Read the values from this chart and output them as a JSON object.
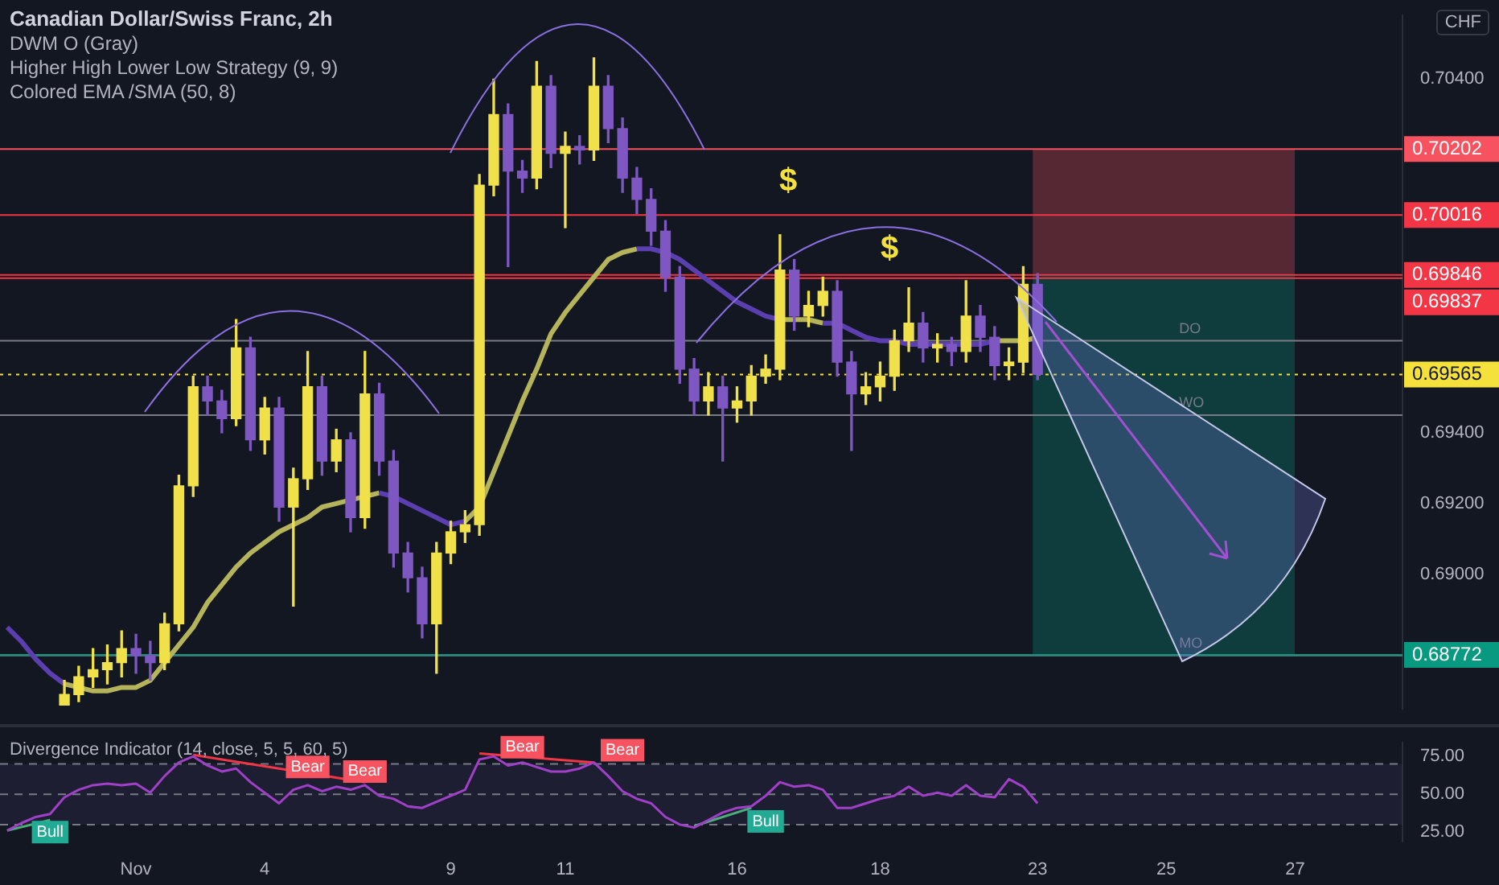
{
  "chart_data": [
    {
      "type": "candlestick",
      "title": "Canadian Dollar/Swiss Franc, 2h",
      "ylabel": "CHF",
      "annotations": [
        "DWM O (Gray)",
        "Higher High Lower Low Strategy (9, 9)",
        "Colored EMA /SMA (50, 8)",
        "$",
        "$"
      ],
      "categories": [
        null,
        null,
        null,
        null,
        null,
        null,
        null,
        null,
        null,
        null,
        null,
        null,
        null,
        null,
        null,
        null,
        null,
        null,
        null,
        null,
        null,
        null,
        null,
        null,
        null,
        null,
        null,
        null,
        null,
        null,
        null,
        null,
        null,
        null,
        null,
        null,
        null,
        null,
        null,
        null,
        null,
        null,
        null,
        null,
        null,
        null,
        null,
        null,
        null,
        null,
        null,
        null,
        null,
        null,
        null,
        null,
        null,
        null,
        null,
        null,
        null,
        null,
        null,
        null,
        null,
        null,
        null,
        null,
        null,
        null,
        null,
        null,
        null,
        null,
        null,
        null,
        null,
        null,
        null,
        null,
        null,
        null,
        null,
        null,
        null,
        null,
        null,
        null,
        null,
        null,
        null,
        null,
        null,
        null,
        null,
        null,
        null,
        null
      ],
      "ohlc": [
        null,
        null,
        null,
        null,
        [
          0.6863,
          0.687,
          0.6863,
          0.6866
        ],
        [
          0.6866,
          0.6874,
          0.6864,
          0.6871
        ],
        [
          0.6871,
          0.6879,
          0.6868,
          0.6873
        ],
        [
          0.6873,
          0.688,
          0.6869,
          0.6875
        ],
        [
          0.6875,
          0.6884,
          0.6871,
          0.6879
        ],
        [
          0.6879,
          0.6883,
          0.6872,
          0.6877
        ],
        [
          0.6877,
          0.6881,
          0.687,
          0.6875
        ],
        [
          0.6875,
          0.6889,
          0.6873,
          0.6886
        ],
        [
          0.6886,
          0.6928,
          0.6884,
          0.6925
        ],
        [
          0.6925,
          0.6956,
          0.6922,
          0.6953
        ],
        [
          0.6953,
          0.6956,
          0.6945,
          0.6949
        ],
        [
          0.6949,
          0.6952,
          0.694,
          0.6944
        ],
        [
          0.6944,
          0.6972,
          0.6942,
          0.6964
        ],
        [
          0.6964,
          0.6967,
          0.6935,
          0.6938
        ],
        [
          0.6938,
          0.695,
          0.6934,
          0.6947
        ],
        [
          0.6947,
          0.695,
          0.6915,
          0.6919
        ],
        [
          0.6919,
          0.693,
          0.6891,
          0.6927
        ],
        [
          0.6927,
          0.6963,
          0.6924,
          0.6953
        ],
        [
          0.6953,
          0.6956,
          0.6928,
          0.6932
        ],
        [
          0.6932,
          0.6941,
          0.6929,
          0.6938
        ],
        [
          0.6938,
          0.694,
          0.6912,
          0.6916
        ],
        [
          0.6916,
          0.6963,
          0.6913,
          0.6951
        ],
        [
          0.6951,
          0.6954,
          0.6928,
          0.6932
        ],
        [
          0.6932,
          0.6935,
          0.6902,
          0.6906
        ],
        [
          0.6906,
          0.6909,
          0.6895,
          0.6899
        ],
        [
          0.6899,
          0.6902,
          0.6882,
          0.6886
        ],
        [
          0.6886,
          0.6909,
          0.6872,
          0.6906
        ],
        [
          0.6906,
          0.6915,
          0.6903,
          0.6912
        ],
        [
          0.6912,
          0.6918,
          0.6909,
          0.6914
        ],
        [
          0.6914,
          0.7013,
          0.6911,
          0.701
        ],
        [
          0.701,
          0.704,
          0.7007,
          0.703
        ],
        [
          0.703,
          0.7033,
          0.6987,
          0.7014
        ],
        [
          0.7014,
          0.7017,
          0.7008,
          0.7012
        ],
        [
          0.7012,
          0.7045,
          0.7009,
          0.7038
        ],
        [
          0.7038,
          0.7041,
          0.7015,
          0.7019
        ],
        [
          0.7019,
          0.7025,
          0.6998,
          0.7021
        ],
        [
          0.7021,
          0.7024,
          0.7016,
          0.702
        ],
        [
          0.702,
          0.7046,
          0.7017,
          0.7038
        ],
        [
          0.7038,
          0.7041,
          0.7022,
          0.7026
        ],
        [
          0.7026,
          0.7029,
          0.7008,
          0.7012
        ],
        [
          0.7012,
          0.7015,
          0.7002,
          0.7006
        ],
        [
          0.7006,
          0.7009,
          0.6993,
          0.6997
        ],
        [
          0.6997,
          0.7,
          0.698,
          0.6984
        ],
        [
          0.6984,
          0.6987,
          0.6954,
          0.6958
        ],
        [
          0.6958,
          0.6961,
          0.6945,
          0.6949
        ],
        [
          0.6949,
          0.6957,
          0.6945,
          0.6953
        ],
        [
          0.6953,
          0.6956,
          0.6932,
          0.6947
        ],
        [
          0.6947,
          0.6953,
          0.6943,
          0.6949
        ],
        [
          0.6949,
          0.6959,
          0.6945,
          0.6956
        ],
        [
          0.6956,
          0.6962,
          0.6954,
          0.6958
        ],
        [
          0.6958,
          0.6996,
          0.6955,
          0.6986
        ],
        [
          0.6986,
          0.6989,
          0.6969,
          0.6973
        ],
        [
          0.6973,
          0.698,
          0.697,
          0.6976
        ],
        [
          0.6976,
          0.6984,
          0.6973,
          0.698
        ],
        [
          0.698,
          0.6983,
          0.6956,
          0.696
        ],
        [
          0.696,
          0.6963,
          0.6935,
          0.6951
        ],
        [
          0.6951,
          0.6957,
          0.6948,
          0.6953
        ],
        [
          0.6953,
          0.696,
          0.6949,
          0.6956
        ],
        [
          0.6956,
          0.6969,
          0.6952,
          0.6966
        ],
        [
          0.6966,
          0.6981,
          0.6963,
          0.6971
        ],
        [
          0.6971,
          0.6974,
          0.696,
          0.6964
        ],
        [
          0.6964,
          0.6968,
          0.696,
          0.6965
        ],
        [
          0.6965,
          0.6967,
          0.6959,
          0.6963
        ],
        [
          0.6963,
          0.6983,
          0.696,
          0.6973
        ],
        [
          0.6973,
          0.6976,
          0.6963,
          0.6967
        ],
        [
          0.6967,
          0.697,
          0.6955,
          0.6959
        ],
        [
          0.6959,
          0.6964,
          0.6955,
          0.696
        ],
        [
          0.696,
          0.6987,
          0.6957,
          0.6982
        ],
        [
          0.6982,
          0.6985,
          0.6955,
          0.69565
        ],
        null,
        null,
        null,
        null,
        null,
        null,
        null,
        null,
        null,
        null,
        null,
        null,
        null,
        null,
        null,
        null,
        null,
        null,
        null,
        null,
        null,
        null,
        null,
        null,
        null
      ],
      "colors": [
        null,
        null,
        null,
        null,
        "#f0e04a",
        "#f0e04a",
        "#f0e04a",
        "#f0e04a",
        "#f0e04a",
        "#7e57c2",
        "#7e57c2",
        "#f0e04a",
        "#f0e04a",
        "#f0e04a",
        "#7e57c2",
        "#7e57c2",
        "#f0e04a",
        "#7e57c2",
        "#f0e04a",
        "#7e57c2",
        "#f0e04a",
        "#f0e04a",
        "#7e57c2",
        "#f0e04a",
        "#7e57c2",
        "#f0e04a",
        "#7e57c2",
        "#7e57c2",
        "#7e57c2",
        "#7e57c2",
        "#f0e04a",
        "#f0e04a",
        "#f0e04a",
        "#f0e04a",
        "#f0e04a",
        "#7e57c2",
        "#7e57c2",
        "#f0e04a",
        "#7e57c2",
        "#f0e04a",
        "#7e57c2",
        "#f0e04a",
        "#7e57c2",
        "#7e57c2",
        "#7e57c2",
        "#7e57c2",
        "#7e57c2",
        "#7e57c2",
        "#7e57c2",
        "#f0e04a",
        "#7e57c2",
        "#f0e04a",
        "#f0e04a",
        "#f0e04a",
        "#f0e04a",
        "#7e57c2",
        "#f0e04a",
        "#f0e04a",
        "#7e57c2",
        "#7e57c2",
        "#f0e04a",
        "#f0e04a",
        "#f0e04a",
        "#f0e04a",
        "#7e57c2",
        "#f0e04a",
        "#7e57c2",
        "#f0e04a",
        "#7e57c2",
        "#7e57c2",
        "#f0e04a",
        "#f0e04a",
        "#7e57c2",
        null,
        null,
        null,
        null,
        null,
        null,
        null,
        null,
        null,
        null,
        null,
        null,
        null,
        null,
        null,
        null,
        null,
        null,
        null,
        null,
        null,
        null,
        null,
        null,
        null
      ],
      "series": [
        {
          "type": "line",
          "color": "#5b3fb0",
          "values": [
            0.6885,
            0.6881,
            0.6876,
            0.6872,
            0.6869,
            null,
            null,
            null,
            null,
            null,
            null,
            null,
            null,
            null,
            null,
            null,
            null,
            null,
            null,
            null,
            null,
            null,
            null,
            null,
            null,
            null,
            0.6923,
            0.6922,
            0.692,
            0.6918,
            0.6916,
            0.6914,
            0.6915,
            null,
            null,
            null,
            null,
            null,
            null,
            null,
            null,
            null,
            null,
            null,
            0.6992,
            0.6992,
            0.6991,
            0.6989,
            0.6986,
            0.6983,
            0.698,
            0.6977,
            0.6975,
            0.6973,
            0.6972,
            null,
            null,
            0.6971,
            0.6971,
            0.6969,
            0.6967,
            0.6966,
            0.6966,
            0.6965,
            0.6965,
            0.6965,
            0.6965,
            0.6965,
            0.6965,
            0.6966,
            null,
            null,
            null,
            null,
            null,
            null,
            null,
            null,
            null,
            null,
            null,
            null,
            null,
            null,
            null,
            null,
            null,
            null,
            null,
            null,
            null,
            null,
            null,
            null,
            null,
            null,
            null,
            null
          ]
        },
        {
          "type": "line",
          "color": "#b5b45a",
          "values": [
            null,
            null,
            null,
            null,
            0.6869,
            0.6868,
            0.6867,
            0.6867,
            0.6868,
            0.6868,
            0.687,
            0.6875,
            0.688,
            0.6885,
            0.6892,
            0.6897,
            0.6902,
            0.6906,
            0.6909,
            0.6912,
            0.6914,
            0.6916,
            0.6919,
            0.692,
            0.6921,
            0.6922,
            0.6923,
            null,
            null,
            null,
            null,
            null,
            0.6915,
            0.6919,
            0.6929,
            0.6939,
            0.6949,
            0.6958,
            0.6968,
            0.6974,
            0.6979,
            0.6984,
            0.6989,
            0.6991,
            0.6992,
            null,
            null,
            null,
            null,
            null,
            null,
            null,
            null,
            null,
            0.6972,
            0.6972,
            0.6972,
            0.6971,
            null,
            null,
            null,
            null,
            null,
            null,
            null,
            null,
            null,
            null,
            null,
            0.6966,
            0.6966,
            0.6966,
            0.6967,
            null,
            null,
            null,
            null,
            null,
            null,
            null,
            null,
            null,
            null,
            null,
            null,
            null,
            null,
            null,
            null,
            null,
            null,
            null,
            null,
            null,
            null,
            null,
            null,
            null
          ]
        }
      ],
      "ref_lines": [
        {
          "axis": "y",
          "value": 0.70202,
          "label": "0.70202",
          "color": "#f7525f"
        },
        {
          "axis": "y",
          "value": 0.70016,
          "label": "0.70016",
          "color": "#f23645"
        },
        {
          "axis": "y",
          "value": 0.69846,
          "label": "0.69846",
          "color": "#f23645"
        },
        {
          "axis": "y",
          "value": 0.69837,
          "label": "0.69837",
          "color": "#f23645"
        },
        {
          "axis": "y",
          "value": 0.69565,
          "label": "0.69565",
          "color": "#f5e13c",
          "line_style": "dotted"
        },
        {
          "axis": "y",
          "value": 0.6966,
          "label": "DO",
          "color": "#787b86"
        },
        {
          "axis": "y",
          "value": 0.6945,
          "label": "WO",
          "color": "#787b86"
        },
        {
          "axis": "y",
          "value": 0.6877,
          "label": "MO",
          "color": "#787b86"
        },
        {
          "axis": "y",
          "value": 0.68772,
          "label": "0.68772",
          "color": "#089981"
        }
      ],
      "bands": [
        {
          "axis": "y",
          "from": 0.69846,
          "to": 0.70202,
          "color": "#f7525f"
        },
        {
          "axis": "y",
          "from": 0.69846,
          "to": 0.68772,
          "color": "#089981"
        }
      ],
      "ylim": [
        0.6862,
        0.7058
      ],
      "yticks": [
        {
          "value": 0.69,
          "label": "0.69000"
        },
        {
          "value": 0.692,
          "label": "0.69200"
        },
        {
          "value": 0.694,
          "label": "0.69400"
        },
        {
          "value": 0.704,
          "label": "0.70400"
        }
      ],
      "tick_labels": "y"
    },
    {
      "type": "line",
      "title": "Divergence Indicator (14, close, 5, 5, 60, 5)",
      "annotations": [
        {
          "text": "Bear",
          "y": 68
        },
        {
          "text": "Bear",
          "y": 65
        },
        {
          "text": "Bear",
          "y": 81
        },
        {
          "text": "Bear",
          "y": 79
        },
        {
          "text": "Bull",
          "y": 25
        },
        {
          "text": "Bull",
          "y": 32
        }
      ],
      "categories": [
        null,
        null,
        null,
        null,
        null,
        null,
        null,
        null,
        null,
        "Nov",
        null,
        null,
        null,
        null,
        null,
        null,
        null,
        null,
        "4",
        null,
        null,
        null,
        null,
        null,
        null,
        null,
        null,
        null,
        null,
        null,
        null,
        "9",
        null,
        null,
        null,
        null,
        null,
        null,
        null,
        "11",
        null,
        null,
        null,
        null,
        null,
        null,
        null,
        null,
        null,
        null,
        null,
        "16",
        null,
        null,
        null,
        null,
        null,
        null,
        null,
        null,
        null,
        "18",
        null,
        null,
        null,
        null,
        null,
        null,
        null,
        null,
        null,
        null,
        "23",
        null,
        null,
        null,
        null,
        null,
        null,
        null,
        null,
        "25",
        null,
        null,
        null,
        null,
        null,
        null,
        null,
        null,
        "27",
        null,
        null,
        null,
        null,
        null,
        null,
        null
      ],
      "series": [
        {
          "color": "#a040c8",
          "values": [
            26,
            31,
            35,
            37,
            48,
            53,
            56,
            57,
            56,
            57,
            51,
            62,
            71,
            75,
            69,
            65,
            67,
            58,
            51,
            44,
            53,
            56,
            52,
            55,
            53,
            56,
            49,
            47,
            42,
            41,
            45,
            49,
            53,
            73,
            75,
            69,
            71,
            68,
            65,
            65,
            67,
            71,
            62,
            52,
            47,
            44,
            35,
            30,
            28,
            33,
            38,
            41,
            42,
            49,
            58,
            55,
            56,
            53,
            41,
            41,
            44,
            47,
            49,
            55,
            49,
            51,
            49,
            56,
            49,
            48,
            60,
            55,
            44,
            null,
            null,
            null,
            null,
            null,
            null,
            null,
            null,
            null,
            null,
            null,
            null,
            null,
            null,
            null,
            null,
            null,
            null,
            null,
            null,
            null,
            null,
            null,
            null,
            null
          ]
        },
        {
          "color": "#4caf7a",
          "values": [
            26,
            null,
            null,
            33,
            null,
            null,
            null,
            null,
            null,
            null,
            null,
            null,
            null,
            null,
            null,
            null,
            null,
            null,
            null,
            null,
            null,
            null,
            null,
            null,
            null,
            null,
            null,
            null,
            null,
            null,
            null,
            null,
            null,
            null,
            null,
            null,
            null,
            null,
            null,
            null,
            null,
            null,
            null,
            null,
            null,
            null,
            null,
            null,
            null,
            null,
            null,
            null,
            null,
            null,
            null,
            null,
            null,
            null,
            null,
            null,
            null,
            null,
            null,
            null,
            null,
            null,
            null,
            null,
            null,
            null,
            null,
            null,
            null,
            null,
            null,
            null,
            null,
            null,
            null,
            null,
            null,
            null,
            null,
            null,
            null,
            null,
            null,
            null,
            null,
            null,
            null,
            null,
            null,
            null,
            null,
            null,
            null,
            null
          ]
        },
        {
          "color": "#f23645",
          "values": [
            null,
            null,
            null,
            null,
            null,
            null,
            null,
            null,
            null,
            null,
            null,
            null,
            null,
            76,
            null,
            null,
            null,
            null,
            null,
            null,
            null,
            null,
            null,
            null,
            null,
            58,
            null,
            null,
            null,
            null,
            null,
            null,
            null,
            null,
            null,
            null,
            null,
            null,
            null,
            null,
            null,
            null,
            null,
            null,
            null,
            null,
            null,
            null,
            null,
            null,
            null,
            null,
            null,
            null,
            null,
            null,
            null,
            null,
            null,
            null,
            null,
            null,
            null,
            null,
            null,
            null,
            null,
            null,
            null,
            null,
            null,
            null,
            null,
            null,
            null,
            null,
            null,
            null,
            null,
            null,
            null,
            null,
            null,
            null,
            null,
            null,
            null,
            null,
            null,
            null,
            null,
            null,
            null,
            null,
            null,
            null,
            null,
            null
          ]
        },
        {
          "color": "#f23645",
          "values": [
            null,
            null,
            null,
            null,
            null,
            null,
            null,
            null,
            null,
            null,
            null,
            null,
            null,
            null,
            null,
            null,
            null,
            null,
            null,
            null,
            null,
            null,
            null,
            null,
            null,
            null,
            null,
            null,
            null,
            null,
            null,
            null,
            null,
            77,
            null,
            null,
            null,
            null,
            null,
            null,
            null,
            71,
            null,
            null,
            null,
            null,
            null,
            null,
            null,
            null,
            null,
            null,
            null,
            null,
            null,
            null,
            null,
            null,
            null,
            null,
            null,
            null,
            null,
            null,
            null,
            null,
            null,
            null,
            null,
            null,
            null,
            null,
            null,
            null,
            null,
            null,
            null,
            null,
            null,
            null,
            null,
            null,
            null,
            null,
            null,
            null,
            null,
            null,
            null,
            null,
            null,
            null,
            null,
            null,
            null,
            null,
            null,
            null
          ]
        },
        {
          "color": "#4caf7a",
          "values": [
            null,
            null,
            null,
            null,
            null,
            null,
            null,
            null,
            null,
            null,
            null,
            null,
            null,
            null,
            null,
            null,
            null,
            null,
            null,
            null,
            null,
            null,
            null,
            null,
            null,
            null,
            null,
            null,
            null,
            null,
            null,
            null,
            null,
            null,
            null,
            null,
            null,
            null,
            null,
            null,
            null,
            null,
            null,
            null,
            null,
            null,
            null,
            null,
            29,
            null,
            null,
            null,
            41,
            null,
            null,
            null,
            null,
            null,
            null,
            null,
            null,
            null,
            null,
            null,
            null,
            null,
            null,
            null,
            null,
            null,
            null,
            null,
            null,
            null,
            null,
            null,
            null,
            null,
            null,
            null,
            null,
            null,
            null,
            null,
            null,
            null,
            null,
            null,
            null,
            null,
            null,
            null,
            null,
            null,
            null,
            null,
            null,
            null
          ]
        }
      ],
      "bands": [
        {
          "axis": "y",
          "from": 30,
          "to": 70,
          "color": "#7e57c2"
        }
      ],
      "ref_lines": [
        {
          "axis": "y",
          "value": 30,
          "color": "#787b86",
          "line_style": "dashed"
        },
        {
          "axis": "y",
          "value": 50,
          "color": "#787b86",
          "line_style": "dashed"
        },
        {
          "axis": "y",
          "value": 70,
          "color": "#787b86",
          "line_style": "dashed"
        }
      ],
      "ylim": [
        19,
        84
      ],
      "yticks": [
        {
          "value": 25,
          "label": "25.00"
        },
        {
          "value": 50,
          "label": "50.00"
        },
        {
          "value": 75,
          "label": "75.00"
        }
      ]
    }
  ]
}
